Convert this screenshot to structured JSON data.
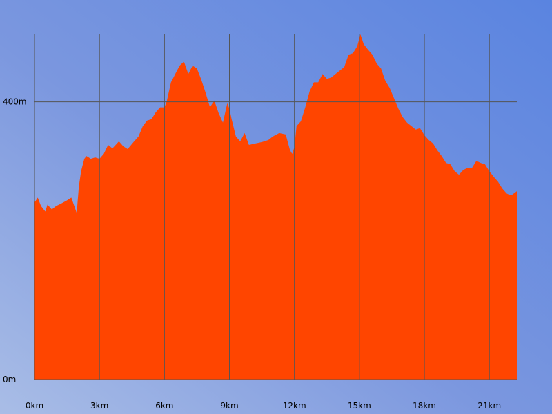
{
  "chart_data": {
    "type": "area",
    "title": "",
    "xlabel": "",
    "ylabel": "",
    "x_unit": "km",
    "y_unit": "m",
    "xlim": [
      0,
      22.3
    ],
    "ylim": [
      0,
      497
    ],
    "grid": true,
    "fill_color": "#ff4500",
    "background_color": "#6f8fe0",
    "x_ticks": [
      {
        "value": 0,
        "label": "0km"
      },
      {
        "value": 3,
        "label": "3km"
      },
      {
        "value": 6,
        "label": "6km"
      },
      {
        "value": 9,
        "label": "9km"
      },
      {
        "value": 12,
        "label": "12km"
      },
      {
        "value": 15,
        "label": "15km"
      },
      {
        "value": 18,
        "label": "18km"
      },
      {
        "value": 21,
        "label": "21km"
      }
    ],
    "y_ticks": [
      {
        "value": 0,
        "label": "0m"
      },
      {
        "value": 400,
        "label": "400m"
      }
    ],
    "series": [
      {
        "x": [
          0,
          0.15,
          0.3,
          0.5,
          0.6,
          0.8,
          1.0,
          1.2,
          1.5,
          1.7,
          1.95,
          2.05,
          2.15,
          2.25,
          2.3,
          2.4,
          2.6,
          2.8,
          3.0,
          3.2,
          3.4,
          3.6,
          3.9,
          4.1,
          4.3,
          4.6,
          4.8,
          5.0,
          5.2,
          5.4,
          5.6,
          5.8,
          6.0,
          6.1,
          6.3,
          6.5,
          6.7,
          6.9,
          7.1,
          7.3,
          7.5,
          7.7,
          7.9,
          8.1,
          8.3,
          8.5,
          8.7,
          8.9,
          9.0,
          9.1,
          9.3,
          9.5,
          9.7,
          9.9,
          10.2,
          10.5,
          10.8,
          11.0,
          11.3,
          11.6,
          11.8,
          11.9,
          12.0,
          12.1,
          12.3,
          12.5,
          12.7,
          12.9,
          13.1,
          13.3,
          13.5,
          13.7,
          13.9,
          14.1,
          14.3,
          14.5,
          14.7,
          14.9,
          15.05,
          15.2,
          15.4,
          15.6,
          15.8,
          16.0,
          16.2,
          16.4,
          16.6,
          16.8,
          17.0,
          17.2,
          17.4,
          17.6,
          17.8,
          18.0,
          18.2,
          18.4,
          18.6,
          18.8,
          19.0,
          19.2,
          19.4,
          19.6,
          19.8,
          20.0,
          20.2,
          20.4,
          20.6,
          20.8,
          21.0,
          21.2,
          21.4,
          21.6,
          21.8,
          22.0,
          22.3
        ],
        "y": [
          255,
          262,
          250,
          242,
          252,
          245,
          250,
          253,
          258,
          262,
          240,
          278,
          300,
          312,
          318,
          322,
          318,
          320,
          318,
          325,
          338,
          333,
          343,
          336,
          332,
          343,
          350,
          365,
          373,
          375,
          385,
          392,
          392,
          400,
          428,
          440,
          452,
          458,
          440,
          452,
          448,
          432,
          413,
          392,
          402,
          384,
          370,
          398,
          390,
          375,
          350,
          343,
          355,
          338,
          340,
          342,
          345,
          350,
          355,
          353,
          330,
          325,
          335,
          365,
          372,
          392,
          415,
          428,
          428,
          440,
          433,
          435,
          440,
          445,
          450,
          468,
          470,
          480,
          497,
          483,
          475,
          468,
          455,
          448,
          430,
          420,
          405,
          390,
          378,
          370,
          365,
          360,
          362,
          352,
          345,
          340,
          330,
          322,
          312,
          310,
          300,
          295,
          302,
          305,
          305,
          315,
          312,
          310,
          300,
          292,
          285,
          275,
          268,
          265,
          272
        ]
      }
    ]
  }
}
